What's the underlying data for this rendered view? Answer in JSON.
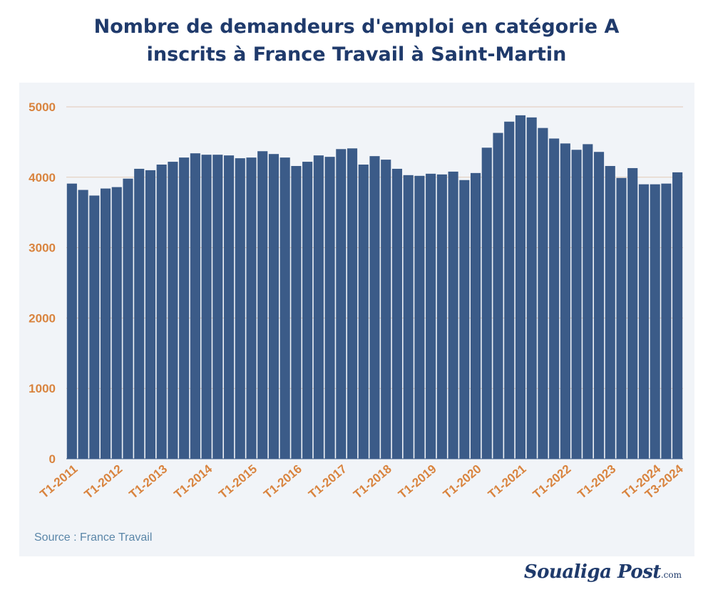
{
  "title_line1": "Nombre de demandeurs d'emploi en catégorie A",
  "title_line2": "inscrits à France Travail à Saint-Martin",
  "source": "Source : France Travail",
  "logo": {
    "text": "Soualiga Post",
    "suffix": ".com"
  },
  "colors": {
    "bar": "#3b5b88",
    "axis_label": "#d9843f",
    "title": "#1f3a6b",
    "panel": "#f1f4f8"
  },
  "chart_data": {
    "type": "bar",
    "title": "Nombre de demandeurs d'emploi en catégorie A inscrits à France Travail à Saint-Martin",
    "xlabel": "",
    "ylabel": "",
    "ylim": [
      0,
      5000
    ],
    "yticks": [
      0,
      1000,
      2000,
      3000,
      4000,
      5000
    ],
    "grid": "horizontal",
    "xtick_labels": [
      "T1-2011",
      "T1-2012",
      "T1-2013",
      "T1-2014",
      "T1-2015",
      "T1-2016",
      "T1-2017",
      "T1-2018",
      "T1-2019",
      "T1-2020",
      "T1-2021",
      "T1-2022",
      "T1-2023",
      "T1-2024",
      "T3-2024"
    ],
    "categories": [
      "T1-2011",
      "T2-2011",
      "T3-2011",
      "T4-2011",
      "T1-2012",
      "T2-2012",
      "T3-2012",
      "T4-2012",
      "T1-2013",
      "T2-2013",
      "T3-2013",
      "T4-2013",
      "T1-2014",
      "T2-2014",
      "T3-2014",
      "T4-2014",
      "T1-2015",
      "T2-2015",
      "T3-2015",
      "T4-2015",
      "T1-2016",
      "T2-2016",
      "T3-2016",
      "T4-2016",
      "T1-2017",
      "T2-2017",
      "T3-2017",
      "T4-2017",
      "T1-2018",
      "T2-2018",
      "T3-2018",
      "T4-2018",
      "T1-2019",
      "T2-2019",
      "T3-2019",
      "T4-2019",
      "T1-2020",
      "T2-2020",
      "T3-2020",
      "T4-2020",
      "T1-2021",
      "T2-2021",
      "T3-2021",
      "T4-2021",
      "T1-2022",
      "T2-2022",
      "T3-2022",
      "T4-2022",
      "T1-2023",
      "T2-2023",
      "T3-2023",
      "T4-2023",
      "T1-2024",
      "T2-2024",
      "T3-2024"
    ],
    "values": [
      3910,
      3820,
      3740,
      3840,
      3860,
      3980,
      4120,
      4100,
      4180,
      4220,
      4280,
      4340,
      4320,
      4320,
      4310,
      4270,
      4280,
      4370,
      4330,
      4280,
      4160,
      4220,
      4310,
      4290,
      4400,
      4410,
      4180,
      4300,
      4250,
      4120,
      4030,
      4020,
      4050,
      4040,
      4080,
      3960,
      4060,
      4420,
      4630,
      4790,
      4880,
      4850,
      4700,
      4550,
      4480,
      4390,
      4470,
      4360,
      4160,
      3990,
      4130,
      3900,
      3900,
      3910,
      4070
    ]
  }
}
